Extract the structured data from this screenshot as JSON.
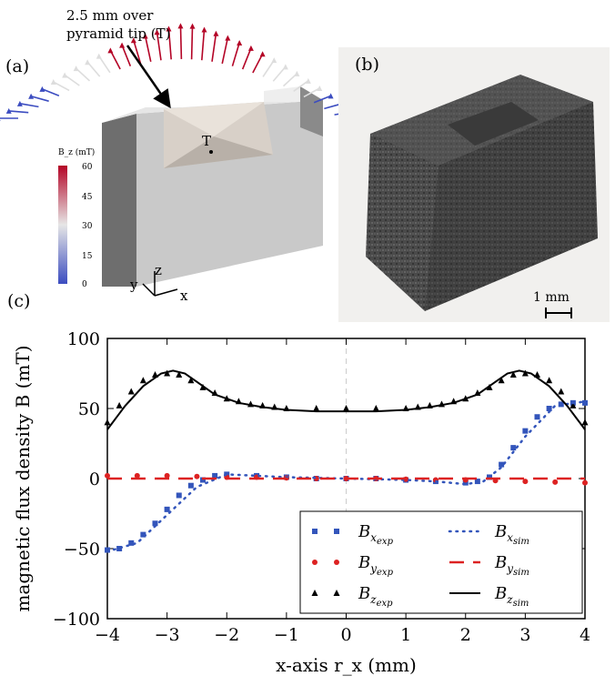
{
  "panel_a": {
    "label": "(a)",
    "annotation_line1": "2.5 mm over",
    "annotation_line2": "pyramid tip (T)",
    "tip_label": "T",
    "colorbar_title": "B_z (mT)",
    "colorbar_ticks": [
      "60",
      "45",
      "30",
      "15",
      "0"
    ],
    "axis_labels": {
      "x": "x",
      "y": "y",
      "z": "z"
    },
    "colors": {
      "low": "#3b4cc0",
      "mid": "#dddddd",
      "high": "#b40426"
    }
  },
  "panel_b": {
    "label": "(b)",
    "scale_bar_label": "1 mm"
  },
  "panel_c": {
    "label": "(c)"
  },
  "chart_data": {
    "type": "scatter",
    "xlabel": "x-axis r_x (mm)",
    "ylabel": "magnetic flux density B (mT)",
    "xlim": [
      -4,
      4
    ],
    "ylim": [
      -100,
      100
    ],
    "xticks": [
      "−4",
      "−3",
      "−2",
      "−1",
      "0",
      "1",
      "2",
      "3",
      "4"
    ],
    "yticks": [
      "100",
      "50",
      "0",
      "−50",
      "−100"
    ],
    "legend_position": "bottom-right",
    "series": [
      {
        "name": "B_x_exp",
        "style": "square-markers",
        "color": "#3355bb",
        "x": [
          -4,
          -3.8,
          -3.6,
          -3.4,
          -3.2,
          -3.0,
          -2.8,
          -2.6,
          -2.4,
          -2.2,
          -2.0,
          -1.5,
          -1.0,
          -0.5,
          0,
          0.5,
          1.0,
          1.5,
          2.0,
          2.2,
          2.4,
          2.6,
          2.8,
          3.0,
          3.2,
          3.4,
          3.6,
          3.8,
          4.0
        ],
        "y": [
          -51,
          -50,
          -46,
          -40,
          -32,
          -22,
          -12,
          -5,
          -1,
          2,
          3,
          2,
          1,
          0,
          0,
          0,
          -1,
          -2,
          -3,
          -2,
          1,
          10,
          22,
          34,
          44,
          50,
          53,
          54,
          54
        ]
      },
      {
        "name": "B_y_exp",
        "style": "circle-markers",
        "color": "#dd2222",
        "x": [
          -4,
          -3.5,
          -3,
          -2.5,
          -2,
          -1.5,
          -1,
          -0.5,
          0,
          0.5,
          1,
          1.5,
          2,
          2.5,
          3,
          3.5,
          4
        ],
        "y": [
          2,
          2,
          2,
          1.5,
          1,
          1,
          0.5,
          0,
          0,
          0,
          -0.5,
          -1,
          -1,
          -1.5,
          -2,
          -2.5,
          -3
        ]
      },
      {
        "name": "B_z_exp",
        "style": "triangle-markers",
        "color": "#000000",
        "x": [
          -4,
          -3.8,
          -3.6,
          -3.4,
          -3.2,
          -3.0,
          -2.8,
          -2.6,
          -2.4,
          -2.2,
          -2.0,
          -1.8,
          -1.6,
          -1.4,
          -1.2,
          -1.0,
          -0.5,
          0,
          0.5,
          1.0,
          1.2,
          1.4,
          1.6,
          1.8,
          2.0,
          2.2,
          2.4,
          2.6,
          2.8,
          3.0,
          3.2,
          3.4,
          3.6,
          3.8,
          4.0
        ],
        "y": [
          40,
          52,
          62,
          70,
          74,
          75,
          74,
          70,
          65,
          61,
          57,
          55,
          53,
          52,
          51,
          50,
          50,
          50,
          50,
          50,
          51,
          52,
          53,
          55,
          57,
          61,
          65,
          70,
          74,
          75,
          74,
          70,
          62,
          52,
          40
        ]
      },
      {
        "name": "B_x_sim",
        "style": "dotted-line",
        "color": "#3355bb",
        "x": [
          -4,
          -3.5,
          -3,
          -2.5,
          -2,
          -1.5,
          -1,
          0,
          1,
          1.5,
          2,
          2.3,
          2.6,
          3,
          3.5,
          4
        ],
        "y": [
          -52,
          -46,
          -26,
          -6,
          3,
          2,
          1,
          0,
          -1,
          -2,
          -4,
          -2,
          8,
          30,
          52,
          55
        ]
      },
      {
        "name": "B_y_sim",
        "style": "dashed-line",
        "color": "#dd2222",
        "x": [
          -4,
          -2,
          0,
          2,
          4
        ],
        "y": [
          0,
          0,
          0,
          0,
          0
        ]
      },
      {
        "name": "B_z_sim",
        "style": "solid-line",
        "color": "#000000",
        "x": [
          -4,
          -3.7,
          -3.4,
          -3.1,
          -2.9,
          -2.7,
          -2.5,
          -2.2,
          -1.8,
          -1.4,
          -1.0,
          -0.5,
          0,
          0.5,
          1.0,
          1.4,
          1.8,
          2.2,
          2.5,
          2.7,
          2.9,
          3.1,
          3.4,
          3.7,
          4.0
        ],
        "y": [
          35,
          52,
          66,
          75,
          77,
          75,
          69,
          60,
          54,
          51,
          49,
          48,
          48,
          48,
          49,
          51,
          54,
          60,
          69,
          75,
          77,
          75,
          66,
          52,
          35
        ]
      }
    ]
  }
}
